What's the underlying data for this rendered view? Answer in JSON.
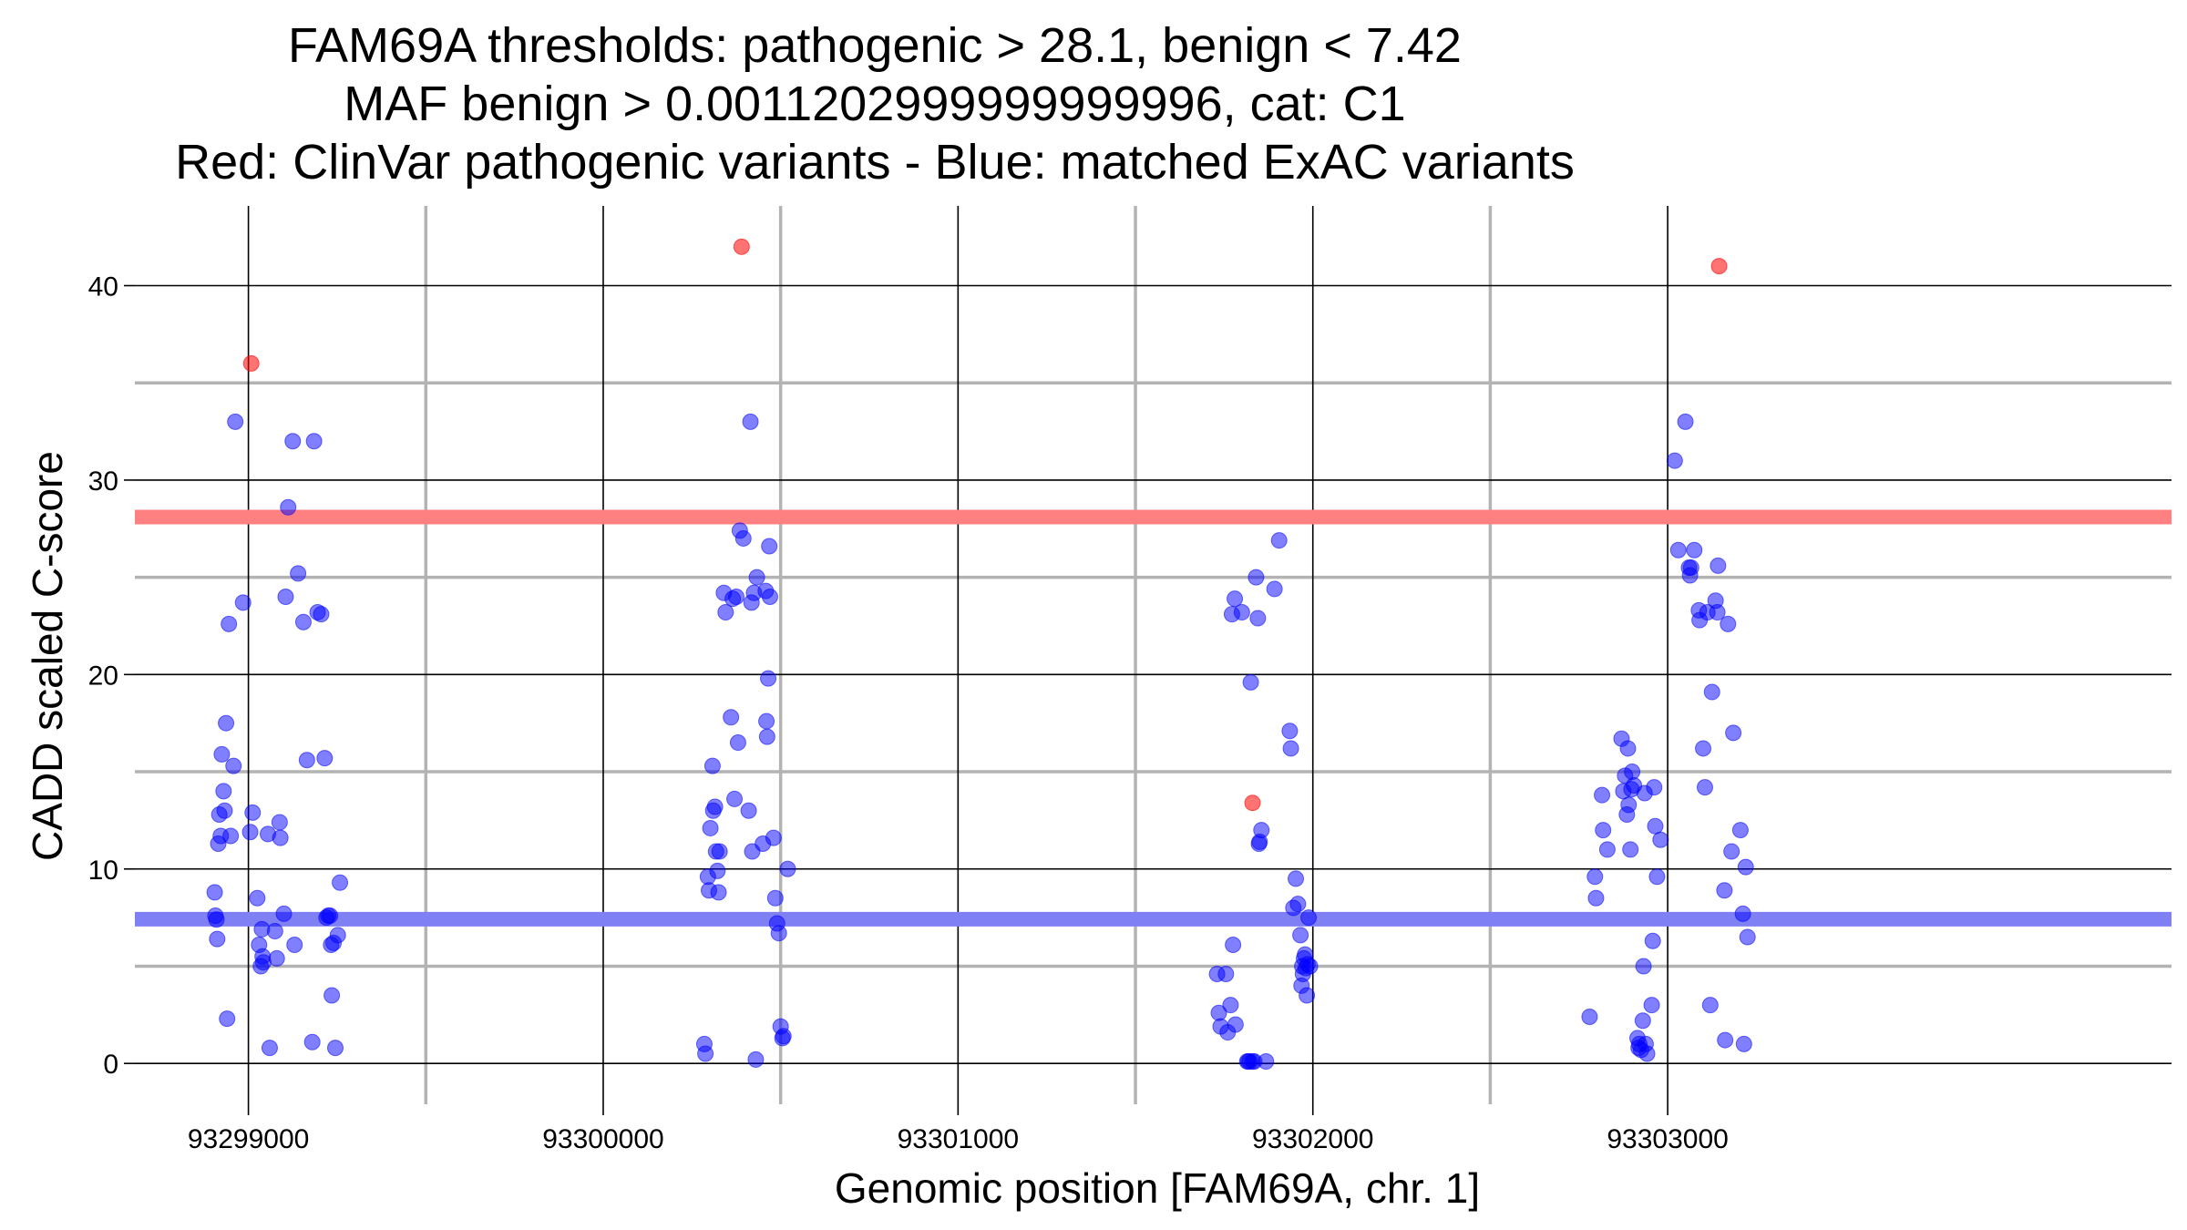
{
  "chart_data": {
    "type": "scatter",
    "title_lines": [
      "FAM69A thresholds: pathogenic > 28.1, benign < 7.42",
      "MAF benign > 0.0011202999999999996, cat: C1",
      "Red: ClinVar pathogenic variants - Blue: matched ExAC variants"
    ],
    "xlabel": "Genomic position [FAM69A, chr. 1]",
    "ylabel": "CADD scaled C-score",
    "xlim": [
      93298680,
      93304420
    ],
    "ylim": [
      -2.1,
      44.1
    ],
    "x_ticks": [
      93299000,
      93300000,
      93301000,
      93302000,
      93303000
    ],
    "x_tick_labels": [
      "93299000",
      "93300000",
      "93301000",
      "93302000",
      "93303000"
    ],
    "y_ticks": [
      0,
      10,
      20,
      30,
      40
    ],
    "y_tick_labels": [
      "0",
      "10",
      "20",
      "30",
      "40"
    ],
    "x_minor_grid": [
      93299500,
      93300500,
      93301500,
      93302500
    ],
    "y_minor_grid": [
      5,
      15,
      25,
      35
    ],
    "grid": true,
    "thresholds": [
      {
        "name": "pathogenic",
        "value": 28.1,
        "color": "#ff8080"
      },
      {
        "name": "benign",
        "value": 7.42,
        "color": "#8080f5"
      }
    ],
    "colors": {
      "pathogenic_points": "#ff0000",
      "exac_points": "#0000ff",
      "major_grid": "#000000",
      "minor_grid": "#b3b3b3"
    },
    "series": [
      {
        "name": "ClinVar pathogenic variants",
        "color": "#ff0000",
        "points": [
          [
            93299008,
            36
          ],
          [
            93300390,
            42
          ],
          [
            93301830,
            13.4
          ],
          [
            93303145,
            41
          ]
        ]
      },
      {
        "name": "matched ExAC variants",
        "color": "#0000ff",
        "points": [
          [
            93298905,
            8.8
          ],
          [
            93298907,
            7.6
          ],
          [
            93298910,
            7.4
          ],
          [
            93298912,
            6.4
          ],
          [
            93298915,
            11.3
          ],
          [
            93298918,
            12.8
          ],
          [
            93298922,
            11.7
          ],
          [
            93298925,
            15.9
          ],
          [
            93298930,
            14.0
          ],
          [
            93298933,
            13.0
          ],
          [
            93298937,
            17.5
          ],
          [
            93298940,
            2.3
          ],
          [
            93298945,
            22.6
          ],
          [
            93298950,
            11.7
          ],
          [
            93298958,
            15.3
          ],
          [
            93298963,
            33.0
          ],
          [
            93298985,
            23.7
          ],
          [
            93299005,
            11.9
          ],
          [
            93299012,
            12.9
          ],
          [
            93299025,
            8.5
          ],
          [
            93299030,
            6.1
          ],
          [
            93299035,
            5.0
          ],
          [
            93299038,
            6.9
          ],
          [
            93299040,
            5.5
          ],
          [
            93299042,
            5.2
          ],
          [
            93299055,
            11.8
          ],
          [
            93299060,
            0.8
          ],
          [
            93299075,
            6.8
          ],
          [
            93299080,
            5.4
          ],
          [
            93299088,
            12.4
          ],
          [
            93299090,
            11.6
          ],
          [
            93299100,
            7.7
          ],
          [
            93299105,
            24.0
          ],
          [
            93299112,
            28.6
          ],
          [
            93299125,
            32.0
          ],
          [
            93299130,
            6.1
          ],
          [
            93299140,
            25.2
          ],
          [
            93299155,
            22.7
          ],
          [
            93299165,
            15.6
          ],
          [
            93299180,
            1.1
          ],
          [
            93299185,
            32.0
          ],
          [
            93299195,
            23.2
          ],
          [
            93299205,
            23.1
          ],
          [
            93299215,
            15.7
          ],
          [
            93299220,
            7.5
          ],
          [
            93299225,
            7.6
          ],
          [
            93299230,
            7.6
          ],
          [
            93299233,
            6.1
          ],
          [
            93299235,
            3.5
          ],
          [
            93299240,
            6.2
          ],
          [
            93299245,
            0.8
          ],
          [
            93299252,
            6.6
          ],
          [
            93299258,
            9.3
          ],
          [
            93300285,
            1.0
          ],
          [
            93300288,
            0.5
          ],
          [
            93300295,
            9.6
          ],
          [
            93300298,
            8.9
          ],
          [
            93300302,
            12.1
          ],
          [
            93300308,
            15.3
          ],
          [
            93300310,
            13.0
          ],
          [
            93300315,
            13.2
          ],
          [
            93300318,
            10.9
          ],
          [
            93300322,
            9.9
          ],
          [
            93300325,
            8.8
          ],
          [
            93300328,
            10.9
          ],
          [
            93300340,
            24.2
          ],
          [
            93300345,
            23.2
          ],
          [
            93300360,
            17.8
          ],
          [
            93300365,
            23.9
          ],
          [
            93300370,
            13.6
          ],
          [
            93300375,
            24.0
          ],
          [
            93300380,
            16.5
          ],
          [
            93300385,
            27.4
          ],
          [
            93300395,
            27.0
          ],
          [
            93300410,
            13.0
          ],
          [
            93300415,
            33.0
          ],
          [
            93300418,
            23.7
          ],
          [
            93300420,
            10.9
          ],
          [
            93300425,
            24.2
          ],
          [
            93300430,
            0.2
          ],
          [
            93300433,
            25.0
          ],
          [
            93300450,
            11.3
          ],
          [
            93300458,
            24.3
          ],
          [
            93300460,
            17.6
          ],
          [
            93300462,
            16.8
          ],
          [
            93300465,
            19.8
          ],
          [
            93300468,
            26.6
          ],
          [
            93300470,
            24.0
          ],
          [
            93300480,
            11.6
          ],
          [
            93300485,
            8.5
          ],
          [
            93300490,
            7.2
          ],
          [
            93300495,
            6.7
          ],
          [
            93300500,
            1.9
          ],
          [
            93300505,
            1.3
          ],
          [
            93300508,
            1.4
          ],
          [
            93300520,
            10.0
          ],
          [
            93301730,
            4.6
          ],
          [
            93301735,
            2.6
          ],
          [
            93301740,
            1.9
          ],
          [
            93301755,
            4.6
          ],
          [
            93301760,
            1.6
          ],
          [
            93301768,
            3.0
          ],
          [
            93301772,
            23.1
          ],
          [
            93301775,
            6.1
          ],
          [
            93301780,
            23.9
          ],
          [
            93301782,
            2.0
          ],
          [
            93301800,
            23.2
          ],
          [
            93301815,
            0.1
          ],
          [
            93301818,
            0.1
          ],
          [
            93301822,
            0.1
          ],
          [
            93301825,
            19.6
          ],
          [
            93301830,
            0.1
          ],
          [
            93301835,
            0.1
          ],
          [
            93301840,
            25.0
          ],
          [
            93301845,
            22.9
          ],
          [
            93301848,
            11.3
          ],
          [
            93301850,
            11.4
          ],
          [
            93301855,
            12.0
          ],
          [
            93301868,
            0.1
          ],
          [
            93301892,
            24.4
          ],
          [
            93301905,
            26.9
          ],
          [
            93301935,
            17.1
          ],
          [
            93301938,
            16.2
          ],
          [
            93301945,
            8.0
          ],
          [
            93301952,
            9.5
          ],
          [
            93301958,
            8.2
          ],
          [
            93301965,
            6.6
          ],
          [
            93301968,
            4.0
          ],
          [
            93301970,
            5.0
          ],
          [
            93301972,
            4.6
          ],
          [
            93301975,
            5.4
          ],
          [
            93301978,
            5.6
          ],
          [
            93301980,
            4.9
          ],
          [
            93301983,
            3.5
          ],
          [
            93301985,
            5.1
          ],
          [
            93301988,
            7.5
          ],
          [
            93301992,
            5.0
          ],
          [
            93302780,
            2.4
          ],
          [
            93302795,
            9.6
          ],
          [
            93302798,
            8.5
          ],
          [
            93302815,
            13.8
          ],
          [
            93302818,
            12.0
          ],
          [
            93302830,
            11.0
          ],
          [
            93302870,
            16.7
          ],
          [
            93302875,
            14.0
          ],
          [
            93302880,
            14.8
          ],
          [
            93302885,
            12.8
          ],
          [
            93302888,
            16.2
          ],
          [
            93302890,
            13.3
          ],
          [
            93302895,
            11.0
          ],
          [
            93302898,
            14.1
          ],
          [
            93302900,
            15.0
          ],
          [
            93302905,
            14.3
          ],
          [
            93302915,
            1.3
          ],
          [
            93302918,
            0.8
          ],
          [
            93302920,
            1.0
          ],
          [
            93302925,
            0.7
          ],
          [
            93302930,
            2.2
          ],
          [
            93302932,
            5.0
          ],
          [
            93302935,
            13.9
          ],
          [
            93302938,
            1.0
          ],
          [
            93302942,
            0.5
          ],
          [
            93302955,
            3.0
          ],
          [
            93302958,
            6.3
          ],
          [
            93302962,
            14.2
          ],
          [
            93302965,
            12.2
          ],
          [
            93302970,
            9.6
          ],
          [
            93302980,
            11.5
          ],
          [
            93303020,
            31.0
          ],
          [
            93303030,
            26.4
          ],
          [
            93303050,
            33.0
          ],
          [
            93303060,
            25.5
          ],
          [
            93303063,
            25.1
          ],
          [
            93303066,
            25.5
          ],
          [
            93303075,
            26.4
          ],
          [
            93303088,
            23.3
          ],
          [
            93303090,
            22.8
          ],
          [
            93303100,
            16.2
          ],
          [
            93303105,
            14.2
          ],
          [
            93303112,
            23.2
          ],
          [
            93303120,
            3.0
          ],
          [
            93303125,
            19.1
          ],
          [
            93303135,
            23.8
          ],
          [
            93303140,
            23.2
          ],
          [
            93303142,
            25.6
          ],
          [
            93303160,
            8.9
          ],
          [
            93303162,
            1.2
          ],
          [
            93303170,
            22.6
          ],
          [
            93303180,
            10.9
          ],
          [
            93303185,
            17.0
          ],
          [
            93303205,
            12.0
          ],
          [
            93303212,
            7.7
          ],
          [
            93303215,
            1.0
          ],
          [
            93303220,
            10.1
          ],
          [
            93303225,
            6.5
          ]
        ]
      }
    ]
  }
}
